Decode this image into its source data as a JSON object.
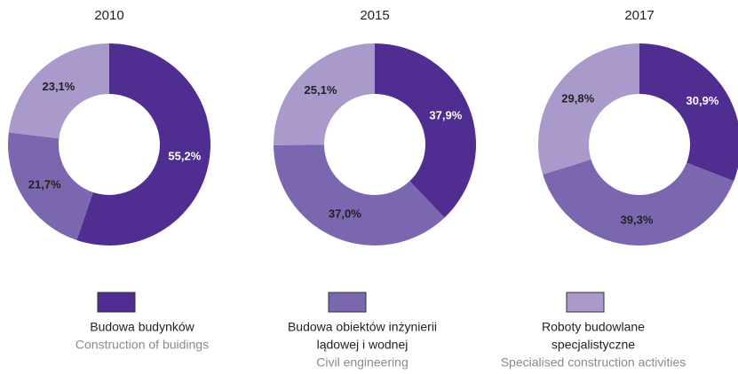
{
  "chart_data": [
    {
      "type": "pie",
      "title": "2010",
      "categories": [
        "Budowa budynków",
        "Budowa obiektów inżynierii lądowej i wodnej",
        "Roboty budowlane specjalistyczne"
      ],
      "values": [
        55.2,
        21.7,
        23.1
      ],
      "value_labels": [
        "55,2%",
        "21,7%",
        "23,1%"
      ],
      "colors": [
        "#4f2d91",
        "#7b66b0",
        "#a99acb"
      ]
    },
    {
      "type": "pie",
      "title": "2015",
      "categories": [
        "Budowa budynków",
        "Budowa obiektów inżynierii lądowej i wodnej",
        "Roboty budowlane specjalistyczne"
      ],
      "values": [
        37.9,
        37.0,
        25.1
      ],
      "value_labels": [
        "37,9%",
        "37,0%",
        "25,1%"
      ],
      "colors": [
        "#4f2d91",
        "#7b66b0",
        "#a99acb"
      ]
    },
    {
      "type": "pie",
      "title": "2017",
      "categories": [
        "Budowa budynków",
        "Budowa obiektów inżynierii lądowej i wodnej",
        "Roboty budowlane specjalistyczne"
      ],
      "values": [
        30.9,
        39.3,
        29.8
      ],
      "value_labels": [
        "30,9%",
        "39,3%",
        "29,8%"
      ],
      "colors": [
        "#4f2d91",
        "#7b66b0",
        "#a99acb"
      ]
    }
  ],
  "legend": [
    {
      "name_lines": [
        "Budowa budynków"
      ],
      "subtitle": "Construction of buidings",
      "color": "#4f2d91"
    },
    {
      "name_lines": [
        "Budowa obiektów inżynierii",
        "lądowej i wodnej"
      ],
      "subtitle": "Civil engineering",
      "color": "#7b66b0"
    },
    {
      "name_lines": [
        "Roboty budowlane",
        "specjalistyczne"
      ],
      "subtitle": "Specialised construction activities",
      "color": "#a99acb"
    }
  ]
}
